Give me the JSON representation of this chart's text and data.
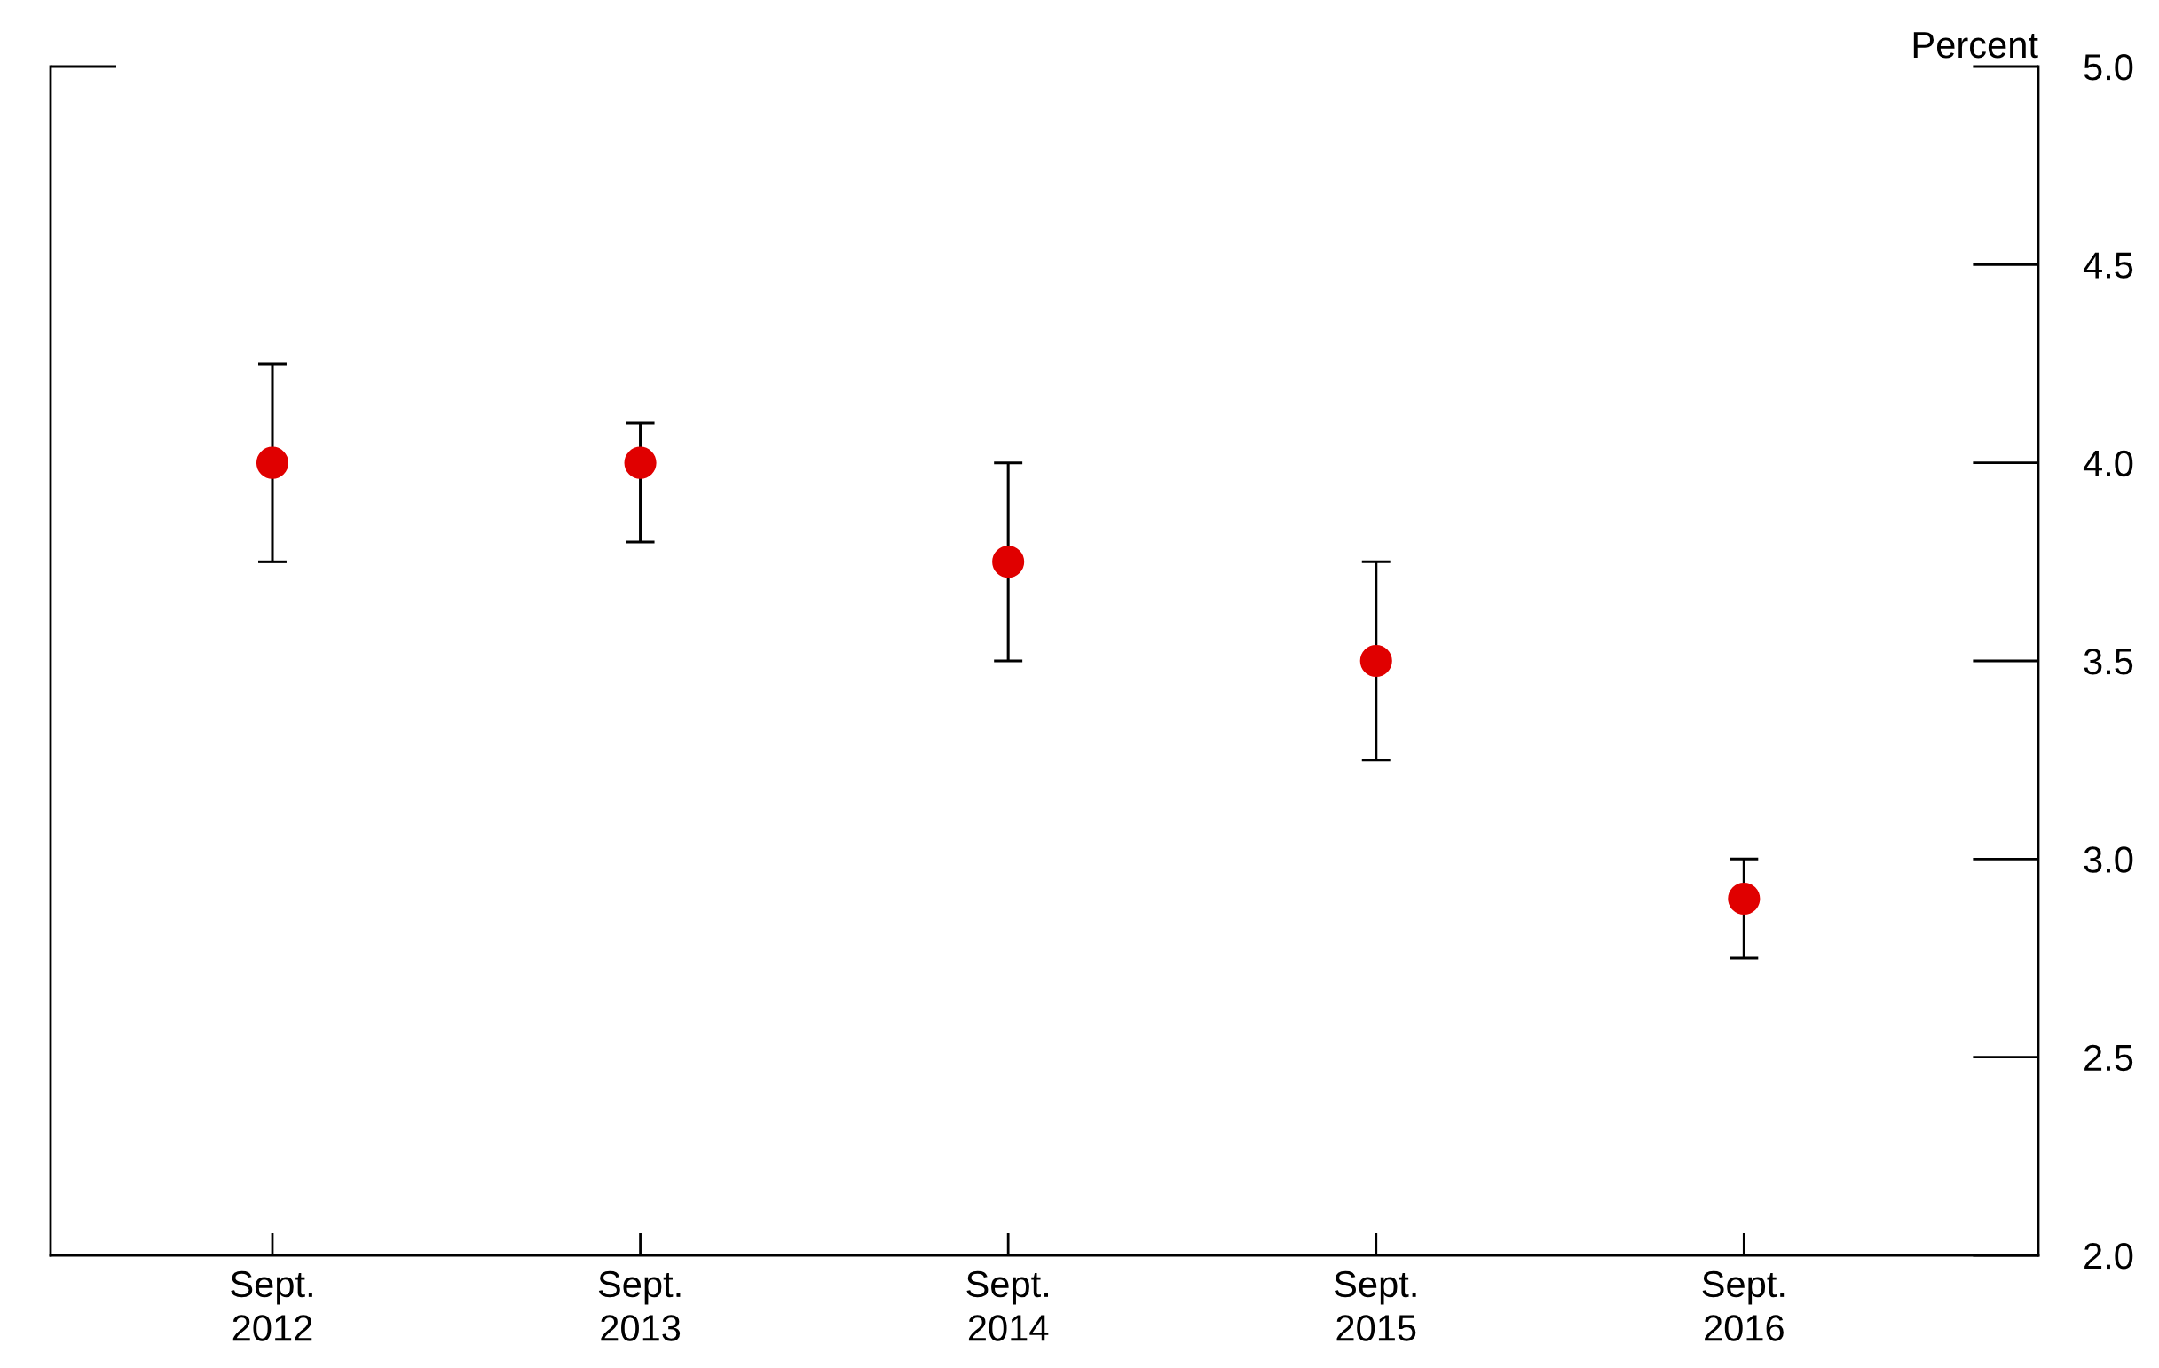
{
  "chart_data": {
    "type": "scatter",
    "categories": [
      "Sept.\n2012",
      "Sept.\n2013",
      "Sept.\n2014",
      "Sept.\n2015",
      "Sept.\n2016"
    ],
    "values": [
      4.0,
      4.0,
      3.75,
      3.5,
      2.9
    ],
    "errors": [
      [
        3.75,
        4.25
      ],
      [
        3.8,
        4.1
      ],
      [
        3.5,
        4.0
      ],
      [
        3.25,
        3.75
      ],
      [
        2.75,
        3.0
      ]
    ],
    "color": "#e00000",
    "marker": "circle",
    "ylabel": "Percent",
    "ylim": [
      2.0,
      5.0
    ],
    "yticks": [
      {
        "value": 2.0,
        "label": "2.0"
      },
      {
        "value": 2.5,
        "label": "2.5"
      },
      {
        "value": 3.0,
        "label": "3.0"
      },
      {
        "value": 3.5,
        "label": "3.5"
      },
      {
        "value": 4.0,
        "label": "4.0"
      },
      {
        "value": 4.5,
        "label": "4.5"
      },
      {
        "value": 5.0,
        "label": "5.0"
      }
    ],
    "grid": false,
    "legend": false
  }
}
